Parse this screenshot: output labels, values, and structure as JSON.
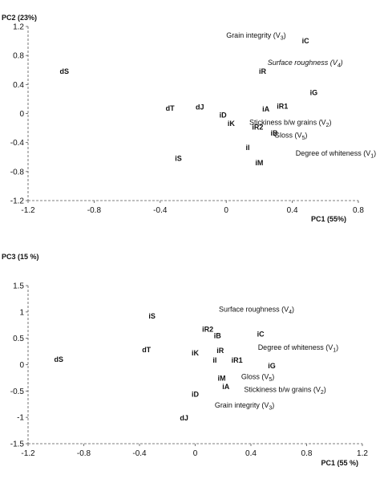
{
  "chart_data": [
    {
      "type": "scatter",
      "title": "",
      "xlabel": "PC1 (55%)",
      "ylabel": "PC2 (23%)",
      "xlim": [
        -1.2,
        0.8
      ],
      "ylim": [
        -1.2,
        1.2
      ],
      "xticks": [
        "-1.2",
        "-0.8",
        "-0.4",
        "0",
        "0.4",
        "0.8"
      ],
      "yticks": [
        "1.2",
        "0.8",
        "0.4",
        "0",
        "-0.4",
        "-0.8",
        "-1.2"
      ],
      "grid": false,
      "samples": [
        {
          "label": "dS",
          "x": -0.98,
          "y": 0.58
        },
        {
          "label": "dT",
          "x": -0.34,
          "y": 0.07
        },
        {
          "label": "dJ",
          "x": -0.16,
          "y": 0.09
        },
        {
          "label": "iD",
          "x": -0.02,
          "y": -0.02
        },
        {
          "label": "iK",
          "x": 0.03,
          "y": -0.14
        },
        {
          "label": "iS",
          "x": -0.29,
          "y": -0.62
        },
        {
          "label": "iR2",
          "x": 0.19,
          "y": -0.19
        },
        {
          "label": "iB",
          "x": 0.29,
          "y": -0.27
        },
        {
          "label": "iA",
          "x": 0.24,
          "y": 0.06
        },
        {
          "label": "iR1",
          "x": 0.34,
          "y": 0.1
        },
        {
          "label": "iR",
          "x": 0.22,
          "y": 0.58
        },
        {
          "label": "iG",
          "x": 0.53,
          "y": 0.29
        },
        {
          "label": "iC",
          "x": 0.48,
          "y": 1.0
        },
        {
          "label": "iI",
          "x": 0.13,
          "y": -0.47
        },
        {
          "label": "iM",
          "x": 0.2,
          "y": -0.68
        }
      ],
      "variables": [
        {
          "label": "Grain integrity (V",
          "sub": "3",
          "x": 0.0,
          "y": 1.08,
          "italic": false
        },
        {
          "label": "Surface roughness (V",
          "sub": "4",
          "x": 0.25,
          "y": 0.7,
          "italic": true
        },
        {
          "label": "Stickiness b/w grains (V",
          "sub": "2",
          "x": 0.14,
          "y": -0.12,
          "italic": false
        },
        {
          "label": "Gloss (V",
          "sub": "5",
          "x": 0.29,
          "y": -0.3,
          "italic": false
        },
        {
          "label": "Degree of whiteness (V",
          "sub": "1",
          "x": 0.42,
          "y": -0.55,
          "italic": false
        }
      ]
    },
    {
      "type": "scatter",
      "title": "",
      "xlabel": "PC1 (55 %)",
      "ylabel": "PC3 (15 %)",
      "xlim": [
        -1.2,
        1.2
      ],
      "ylim": [
        -1.5,
        1.5
      ],
      "xticks": [
        "-1.2",
        "-0.8",
        "-0.4",
        "0",
        "0.4",
        "0.8",
        "1.2"
      ],
      "yticks": [
        "1.5",
        "1",
        "0.5",
        "0",
        "-0.5",
        "-1",
        "-1.5"
      ],
      "grid": false,
      "samples": [
        {
          "label": "iS",
          "x": -0.31,
          "y": 0.92
        },
        {
          "label": "iR2",
          "x": 0.09,
          "y": 0.67
        },
        {
          "label": "iB",
          "x": 0.16,
          "y": 0.55
        },
        {
          "label": "iC",
          "x": 0.47,
          "y": 0.58
        },
        {
          "label": "dT",
          "x": -0.35,
          "y": 0.28
        },
        {
          "label": "iK",
          "x": 0.0,
          "y": 0.22
        },
        {
          "label": "iR",
          "x": 0.18,
          "y": 0.27
        },
        {
          "label": "iI",
          "x": 0.14,
          "y": 0.08
        },
        {
          "label": "iR1",
          "x": 0.3,
          "y": 0.08
        },
        {
          "label": "iG",
          "x": 0.55,
          "y": -0.02
        },
        {
          "label": "dS",
          "x": -0.98,
          "y": 0.1
        },
        {
          "label": "iM",
          "x": 0.19,
          "y": -0.26
        },
        {
          "label": "iA",
          "x": 0.22,
          "y": -0.42
        },
        {
          "label": "iD",
          "x": 0.0,
          "y": -0.56
        },
        {
          "label": "dJ",
          "x": -0.08,
          "y": -1.01
        }
      ],
      "variables": [
        {
          "label": "Surface roughness (V",
          "sub": "4",
          "x": 0.17,
          "y": 1.05,
          "italic": false
        },
        {
          "label": "Degree of whiteness (V",
          "sub": "1",
          "x": 0.45,
          "y": 0.33,
          "italic": false
        },
        {
          "label": "Gloss (V",
          "sub": "5",
          "x": 0.33,
          "y": -0.23,
          "italic": false
        },
        {
          "label": "Stickiness b/w grains (V",
          "sub": "2",
          "x": 0.35,
          "y": -0.47,
          "italic": false
        },
        {
          "label": "Grain integrity (V",
          "sub": "3",
          "x": 0.14,
          "y": -0.77,
          "italic": false
        }
      ]
    }
  ]
}
